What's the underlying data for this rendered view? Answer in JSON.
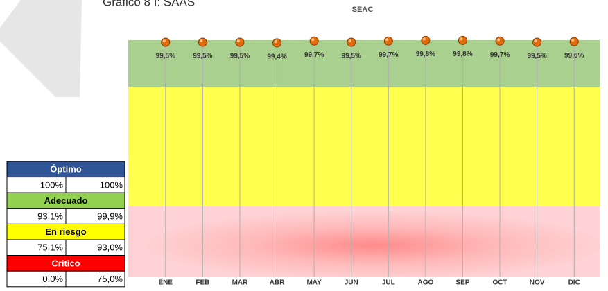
{
  "caption": "Gráfico 8 I: SAAS",
  "chart_data": {
    "type": "line",
    "title": "SEAC",
    "show_line": false,
    "color": "#e36c0a",
    "categories": [
      "ENE",
      "FEB",
      "MAR",
      "ABR",
      "MAY",
      "JUN",
      "JUL",
      "AGO",
      "SEP",
      "OCT",
      "NOV",
      "DIC"
    ],
    "values": [
      99.5,
      99.5,
      99.5,
      99.4,
      99.7,
      99.5,
      99.7,
      99.8,
      99.8,
      99.7,
      99.5,
      99.6
    ],
    "value_labels": [
      "99,5%",
      "99,5%",
      "99,5%",
      "99,4%",
      "99,7%",
      "99,5%",
      "99,7%",
      "99,8%",
      "99,8%",
      "99,7%",
      "99,5%",
      "99,6%"
    ],
    "ylim": [
      60,
      100.2
    ]
  },
  "legend_table": [
    {
      "label": "Óptimo",
      "min": "100%",
      "max": "100%"
    },
    {
      "label": "Adecuado",
      "min": "93,1%",
      "max": "99,9%"
    },
    {
      "label": "En riesgo",
      "min": "75,1%",
      "max": "93,0%"
    },
    {
      "label": "Critico",
      "min": "0,0%",
      "max": "75,0%"
    }
  ]
}
